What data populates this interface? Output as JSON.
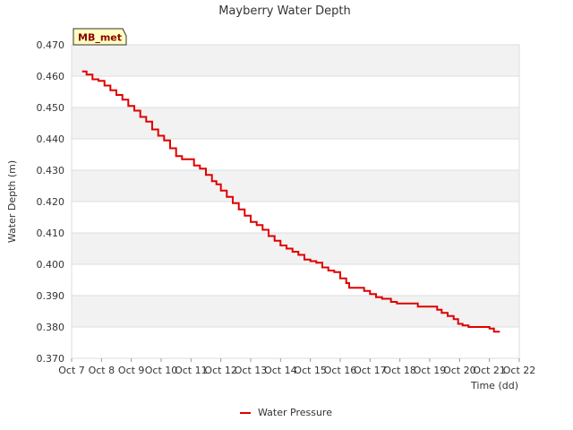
{
  "chart_data": {
    "type": "line",
    "title": "Mayberry Water Depth",
    "xlabel": "Time (dd)",
    "ylabel": "Water Depth (m)",
    "site_tag": "MB_met",
    "x_tick_labels": [
      "Oct 7",
      "Oct 8",
      "Oct 9",
      "Oct 10",
      "Oct 11",
      "Oct 12",
      "Oct 13",
      "Oct 14",
      "Oct 15",
      "Oct 16",
      "Oct 17",
      "Oct 18",
      "Oct 19",
      "Oct 20",
      "Oct 21",
      "Oct 22"
    ],
    "y_tick_labels": [
      "0.370",
      "0.380",
      "0.390",
      "0.400",
      "0.410",
      "0.420",
      "0.430",
      "0.440",
      "0.450",
      "0.460",
      "0.470"
    ],
    "xlim": [
      7,
      22
    ],
    "ylim": [
      0.37,
      0.47
    ],
    "grid": true,
    "legend_position": "bottom-center",
    "colors": {
      "series": "#e00000",
      "band": "#f2f2f2",
      "grid": "#dddddd",
      "tag_bg": "#ffffc0"
    },
    "series": [
      {
        "name": "Water Pressure",
        "points": [
          [
            7.35,
            0.4615
          ],
          [
            7.5,
            0.4605
          ],
          [
            7.7,
            0.459
          ],
          [
            7.9,
            0.4585
          ],
          [
            8.1,
            0.457
          ],
          [
            8.3,
            0.4555
          ],
          [
            8.5,
            0.454
          ],
          [
            8.7,
            0.4525
          ],
          [
            8.9,
            0.4505
          ],
          [
            9.1,
            0.449
          ],
          [
            9.3,
            0.447
          ],
          [
            9.5,
            0.4455
          ],
          [
            9.7,
            0.443
          ],
          [
            9.9,
            0.441
          ],
          [
            10.1,
            0.4395
          ],
          [
            10.3,
            0.437
          ],
          [
            10.5,
            0.4345
          ],
          [
            10.7,
            0.4335
          ],
          [
            10.9,
            0.4335
          ],
          [
            11.1,
            0.4315
          ],
          [
            11.3,
            0.4305
          ],
          [
            11.5,
            0.4285
          ],
          [
            11.7,
            0.4265
          ],
          [
            11.85,
            0.4255
          ],
          [
            12.0,
            0.4235
          ],
          [
            12.2,
            0.4215
          ],
          [
            12.4,
            0.4195
          ],
          [
            12.6,
            0.4175
          ],
          [
            12.8,
            0.4155
          ],
          [
            13.0,
            0.4135
          ],
          [
            13.2,
            0.4125
          ],
          [
            13.4,
            0.411
          ],
          [
            13.6,
            0.409
          ],
          [
            13.8,
            0.4075
          ],
          [
            14.0,
            0.406
          ],
          [
            14.2,
            0.405
          ],
          [
            14.4,
            0.404
          ],
          [
            14.6,
            0.403
          ],
          [
            14.8,
            0.4015
          ],
          [
            15.0,
            0.401
          ],
          [
            15.2,
            0.4005
          ],
          [
            15.4,
            0.399
          ],
          [
            15.6,
            0.398
          ],
          [
            15.8,
            0.3975
          ],
          [
            16.0,
            0.3955
          ],
          [
            16.2,
            0.394
          ],
          [
            16.3,
            0.3925
          ],
          [
            16.5,
            0.3925
          ],
          [
            16.8,
            0.3915
          ],
          [
            17.0,
            0.3905
          ],
          [
            17.2,
            0.3895
          ],
          [
            17.4,
            0.389
          ],
          [
            17.7,
            0.388
          ],
          [
            17.9,
            0.3875
          ],
          [
            18.1,
            0.3875
          ],
          [
            18.3,
            0.3875
          ],
          [
            18.6,
            0.3865
          ],
          [
            18.9,
            0.3865
          ],
          [
            19.1,
            0.3865
          ],
          [
            19.25,
            0.3855
          ],
          [
            19.4,
            0.3845
          ],
          [
            19.6,
            0.3835
          ],
          [
            19.8,
            0.3825
          ],
          [
            19.95,
            0.381
          ],
          [
            20.1,
            0.3805
          ],
          [
            20.3,
            0.38
          ],
          [
            20.6,
            0.38
          ],
          [
            20.9,
            0.38
          ],
          [
            21.0,
            0.3795
          ],
          [
            21.15,
            0.3785
          ],
          [
            21.35,
            0.3785
          ]
        ]
      }
    ]
  }
}
